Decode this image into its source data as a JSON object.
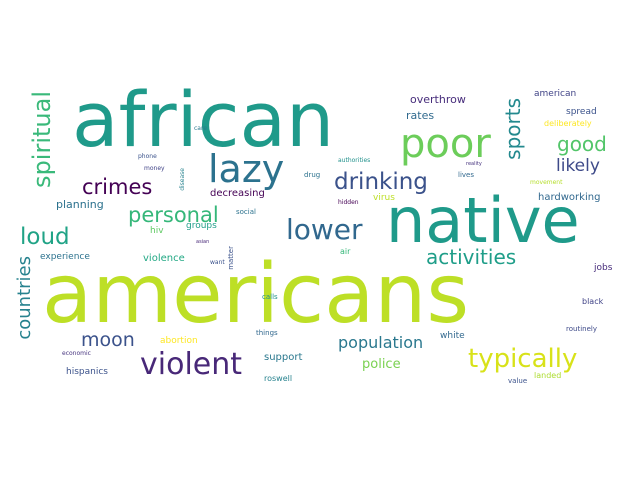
{
  "word_cloud": {
    "words": [
      {
        "text": "americans",
        "color": "#bddf26"
      },
      {
        "text": "african",
        "color": "#1f9a8a"
      },
      {
        "text": "native",
        "color": "#1f9a8a"
      },
      {
        "text": "poor",
        "color": "#6ccd5a"
      },
      {
        "text": "lazy",
        "color": "#2c728e"
      },
      {
        "text": "lower",
        "color": "#31688e"
      },
      {
        "text": "violent",
        "color": "#482878"
      },
      {
        "text": "typically",
        "color": "#d8e219"
      },
      {
        "text": "drinking",
        "color": "#3b528b"
      },
      {
        "text": "crimes",
        "color": "#440154"
      },
      {
        "text": "personal",
        "color": "#35b779"
      },
      {
        "text": "spiritual",
        "color": "#3ab97a"
      },
      {
        "text": "sports",
        "color": "#23898e"
      },
      {
        "text": "good",
        "color": "#52c569"
      },
      {
        "text": "loud",
        "color": "#20a386"
      },
      {
        "text": "activities",
        "color": "#1f9e89"
      },
      {
        "text": "countries",
        "color": "#26828e"
      },
      {
        "text": "moon",
        "color": "#3b528b"
      },
      {
        "text": "population",
        "color": "#2a788e"
      },
      {
        "text": "likely",
        "color": "#3e4a89"
      },
      {
        "text": "police",
        "color": "#7ad151"
      },
      {
        "text": "overthrow",
        "color": "#472d7b"
      },
      {
        "text": "rates",
        "color": "#306a8e"
      },
      {
        "text": "american",
        "color": "#414487"
      },
      {
        "text": "spread",
        "color": "#3b528b"
      },
      {
        "text": "deliberately",
        "color": "#fde725"
      },
      {
        "text": "hardworking",
        "color": "#31688e"
      },
      {
        "text": "planning",
        "color": "#2c728e"
      },
      {
        "text": "decreasing",
        "color": "#440154"
      },
      {
        "text": "hiv",
        "color": "#5ec962"
      },
      {
        "text": "groups",
        "color": "#1f9e89"
      },
      {
        "text": "violence",
        "color": "#22a884"
      },
      {
        "text": "abortion",
        "color": "#fde725"
      },
      {
        "text": "experience",
        "color": "#2c728e"
      },
      {
        "text": "support",
        "color": "#2a788e"
      },
      {
        "text": "hispanics",
        "color": "#3b528b"
      },
      {
        "text": "white",
        "color": "#31688e"
      },
      {
        "text": "jobs",
        "color": "#472d7b"
      },
      {
        "text": "black",
        "color": "#404387"
      },
      {
        "text": "routinely",
        "color": "#3e4a89"
      },
      {
        "text": "landed",
        "color": "#addc30"
      },
      {
        "text": "value",
        "color": "#3b528b"
      },
      {
        "text": "roswell",
        "color": "#26828e"
      },
      {
        "text": "things",
        "color": "#31688e"
      },
      {
        "text": "calls",
        "color": "#21918c"
      },
      {
        "text": "economic",
        "color": "#46337e"
      },
      {
        "text": "want",
        "color": "#3b528b"
      },
      {
        "text": "matter",
        "color": "#3b528b"
      },
      {
        "text": "asian",
        "color": "#482878"
      },
      {
        "text": "air",
        "color": "#35b779"
      },
      {
        "text": "hidden",
        "color": "#440154"
      },
      {
        "text": "virus",
        "color": "#bddf26"
      },
      {
        "text": "social",
        "color": "#2c728e"
      },
      {
        "text": "drug",
        "color": "#2c728e"
      },
      {
        "text": "authorities",
        "color": "#21918c"
      },
      {
        "text": "lives",
        "color": "#31688e"
      },
      {
        "text": "reality",
        "color": "#46337e"
      },
      {
        "text": "movement",
        "color": "#b5de2b"
      },
      {
        "text": "disease",
        "color": "#26828e"
      },
      {
        "text": "money",
        "color": "#404387"
      },
      {
        "text": "phone",
        "color": "#3b528b"
      },
      {
        "text": "care",
        "color": "#2a788e"
      }
    ]
  }
}
